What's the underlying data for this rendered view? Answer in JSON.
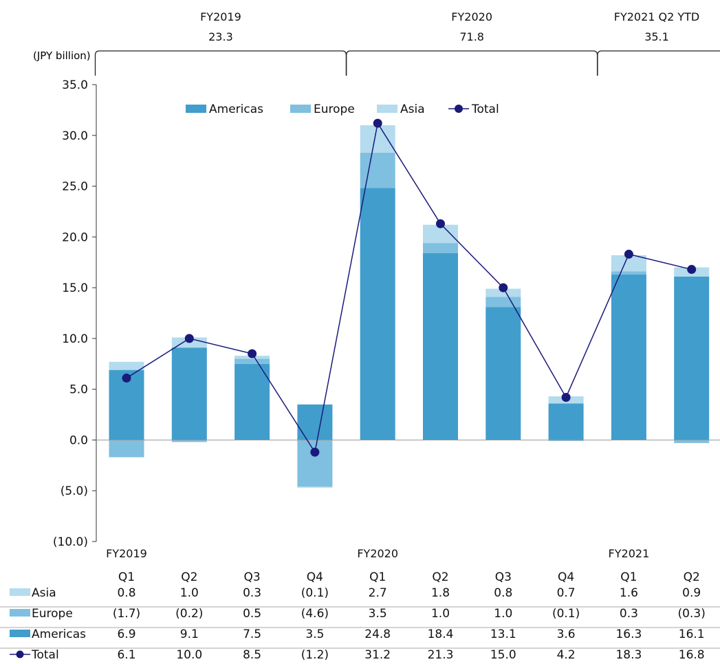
{
  "chart_data": {
    "type": "bar",
    "unit_label": "(JPY billion)",
    "categories": [
      "Q1",
      "Q2",
      "Q3",
      "Q4",
      "Q1",
      "Q2",
      "Q3",
      "Q4",
      "Q1",
      "Q2"
    ],
    "year_labels": [
      "FY2019",
      "FY2020",
      "FY2021"
    ],
    "year_start_index": [
      0,
      4,
      8
    ],
    "period_groups": [
      {
        "label": "FY2019",
        "value": "23.3",
        "from": 0,
        "to": 3
      },
      {
        "label": "FY2020",
        "value": "71.8",
        "from": 4,
        "to": 7
      },
      {
        "label": "FY2021 Q2 YTD",
        "value": "35.1",
        "from": 8,
        "to": 9
      }
    ],
    "ylim": [
      -10,
      35
    ],
    "yticks": [
      35,
      30,
      25,
      20,
      15,
      10,
      5,
      0,
      -5,
      -10
    ],
    "ytick_labels": [
      "35.0",
      "30.0",
      "25.0",
      "20.0",
      "15.0",
      "10.0",
      "5.0",
      "0.0",
      "(5.0)",
      "(10.0)"
    ],
    "series": [
      {
        "name": "Americas",
        "kind": "bar",
        "color": "#419dcc",
        "values": [
          6.9,
          9.1,
          7.5,
          3.5,
          24.8,
          18.4,
          13.1,
          3.6,
          16.3,
          16.1
        ],
        "labels": [
          "6.9",
          "9.1",
          "7.5",
          "3.5",
          "24.8",
          "18.4",
          "13.1",
          "3.6",
          "16.3",
          "16.1"
        ]
      },
      {
        "name": "Europe",
        "kind": "bar",
        "color": "#7fbfdf",
        "values": [
          -1.7,
          -0.2,
          0.5,
          -4.6,
          3.5,
          1.0,
          1.0,
          -0.1,
          0.3,
          -0.3
        ],
        "labels": [
          "(1.7)",
          "(0.2)",
          "0.5",
          "(4.6)",
          "3.5",
          "1.0",
          "1.0",
          "(0.1)",
          "0.3",
          "(0.3)"
        ]
      },
      {
        "name": "Asia",
        "kind": "bar",
        "color": "#b4dbee",
        "values": [
          0.8,
          1.0,
          0.3,
          -0.1,
          2.7,
          1.8,
          0.8,
          0.7,
          1.6,
          0.9
        ],
        "labels": [
          "0.8",
          "1.0",
          "0.3",
          "(0.1)",
          "2.7",
          "1.8",
          "0.8",
          "0.7",
          "1.6",
          "0.9"
        ]
      },
      {
        "name": "Total",
        "kind": "line",
        "color": "#1a1a7a",
        "values": [
          6.1,
          10.0,
          8.5,
          -1.2,
          31.2,
          21.3,
          15.0,
          4.2,
          18.3,
          16.8
        ],
        "labels": [
          "6.1",
          "10.0",
          "8.5",
          "(1.2)",
          "31.2",
          "21.3",
          "15.0",
          "4.2",
          "18.3",
          "16.8"
        ]
      }
    ],
    "legend_order": [
      "Americas",
      "Europe",
      "Asia",
      "Total"
    ],
    "table_row_order": [
      "Asia",
      "Europe",
      "Americas",
      "Total"
    ],
    "legend_position": "top",
    "grid": false
  }
}
